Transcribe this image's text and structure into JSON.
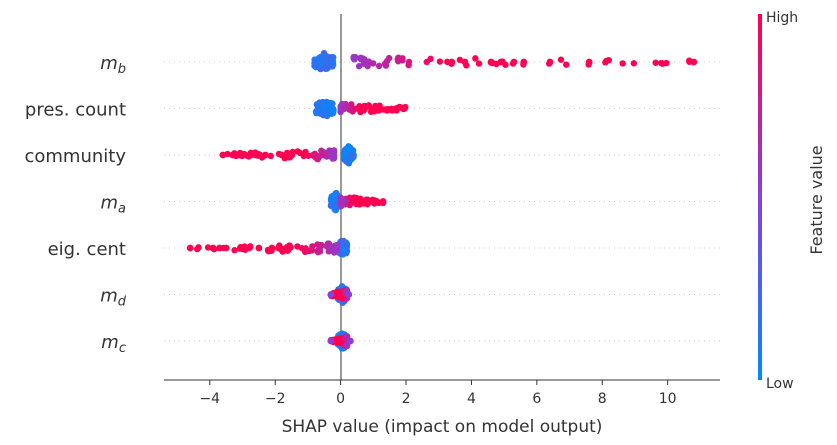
{
  "chart_data": {
    "type": "scatter",
    "subtype": "shap-beeswarm-summary",
    "xlabel": "SHAP value (impact on model output)",
    "xlim": [
      -5.4,
      11.6
    ],
    "xticks": [
      -4,
      -2,
      0,
      2,
      4,
      6,
      8,
      10
    ],
    "xtick_labels": [
      "−4",
      "−2",
      "0",
      "2",
      "4",
      "6",
      "8",
      "10"
    ],
    "colorbar": {
      "title": "Feature value",
      "high_label": "High",
      "low_label": "Low",
      "high_color": "#ff0052",
      "low_color": "#008bfb"
    },
    "features": [
      {
        "label": "m_b",
        "display_main": "m",
        "display_sub": "b",
        "italic": true,
        "low_range": [
          -0.8,
          -0.2
        ],
        "high_tail": [
          0.4,
          10.8
        ],
        "outliers": [
          3.4,
          3.8,
          4.6,
          4.9,
          5.3,
          5.6,
          6.4,
          7.6,
          10.8
        ]
      },
      {
        "label": "pres. count",
        "display_main": "pres. count",
        "display_sub": "",
        "italic": false,
        "low_range": [
          -0.75,
          -0.2
        ],
        "high_tail": [
          0.0,
          2.0
        ],
        "outliers": [
          1.7,
          1.95
        ]
      },
      {
        "label": "community",
        "display_main": "community",
        "display_sub": "",
        "italic": false,
        "low_range": [
          0.1,
          0.4
        ],
        "high_tail": [
          -3.6,
          -0.2
        ],
        "outliers": [
          -3.6,
          -3.3,
          -3.1,
          -2.6,
          -2.3,
          -1.8,
          -1.65
        ]
      },
      {
        "label": "m_a",
        "display_main": "m",
        "display_sub": "a",
        "italic": true,
        "low_range": [
          -0.3,
          0.0
        ],
        "high_tail": [
          0.0,
          1.3
        ],
        "outliers": [
          1.1,
          1.3
        ]
      },
      {
        "label": "eig. cent",
        "display_main": "eig. cent",
        "display_sub": "",
        "italic": false,
        "low_range": [
          -0.05,
          0.2
        ],
        "high_tail": [
          -4.6,
          -0.1
        ],
        "outliers": [
          -4.6,
          -3.9,
          -3.7,
          -3.5,
          -3.0,
          -2.8,
          -2.5,
          -2.1,
          -1.9
        ]
      },
      {
        "label": "m_d",
        "display_main": "m",
        "display_sub": "d",
        "italic": true,
        "low_range": [
          -0.1,
          0.2
        ],
        "high_tail": [
          -0.3,
          0.2
        ],
        "outliers": [
          -0.3,
          0.25
        ]
      },
      {
        "label": "m_c",
        "display_main": "m",
        "display_sub": "c",
        "italic": true,
        "low_range": [
          -0.1,
          0.2
        ],
        "high_tail": [
          -0.3,
          0.2
        ],
        "outliers": [
          -0.3,
          0.3
        ]
      }
    ]
  }
}
